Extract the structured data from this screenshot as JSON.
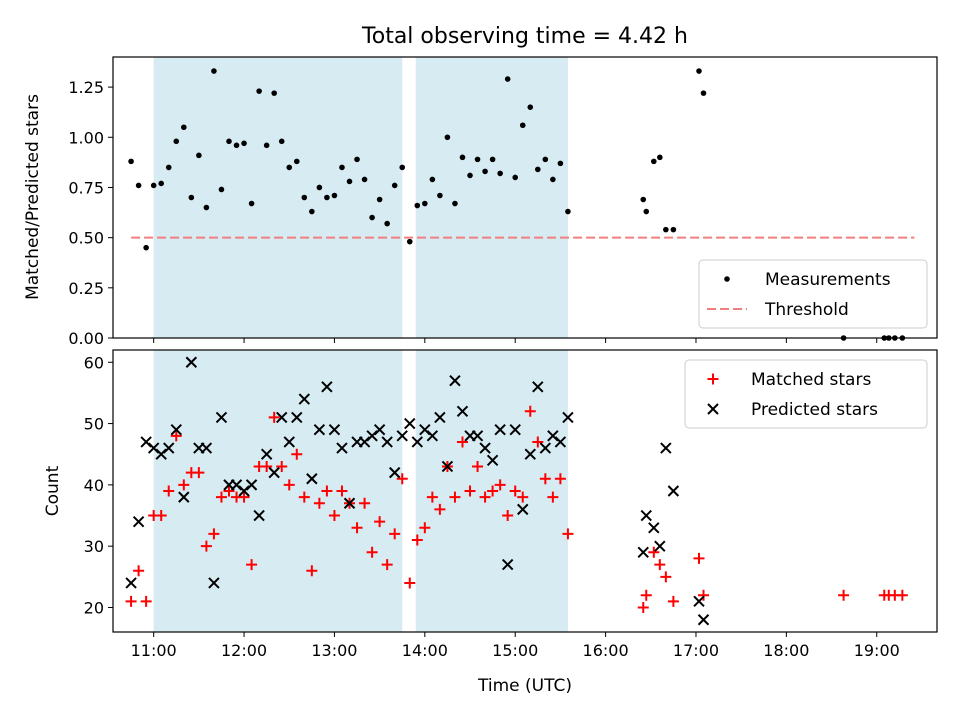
{
  "title": "Total observing time = 4.42 h",
  "chart_data": [
    {
      "type": "scatter",
      "panel": "top",
      "ylabel": "Matched/Predicted stars",
      "xlabel": "",
      "xlim": [
        "10:33",
        "19:40"
      ],
      "ylim": [
        0,
        1.4
      ],
      "yticks": [
        0.0,
        0.25,
        0.5,
        0.75,
        1.0,
        1.25
      ],
      "ytick_labels": [
        "0.00",
        "0.25",
        "0.50",
        "0.75",
        "1.00",
        "1.25"
      ],
      "xticks": [
        "11:00",
        "12:00",
        "13:00",
        "14:00",
        "15:00",
        "16:00",
        "17:00",
        "18:00",
        "19:00"
      ],
      "xtick_labels": [
        "",
        "",
        "",
        "",
        "",
        "",
        "",
        "",
        ""
      ],
      "shaded_intervals": [
        [
          "11:00",
          "13:45"
        ],
        [
          "13:54",
          "15:35"
        ]
      ],
      "series": [
        {
          "name": "Measurements",
          "marker": "point",
          "color": "#000000",
          "x": [
            "10:45",
            "10:50",
            "10:55",
            "11:00",
            "11:05",
            "11:10",
            "11:15",
            "11:20",
            "11:25",
            "11:30",
            "11:35",
            "11:40",
            "11:45",
            "11:50",
            "11:55",
            "12:00",
            "12:05",
            "12:10",
            "12:15",
            "12:20",
            "12:25",
            "12:30",
            "12:35",
            "12:40",
            "12:45",
            "12:50",
            "12:55",
            "13:00",
            "13:05",
            "13:10",
            "13:15",
            "13:20",
            "13:25",
            "13:30",
            "13:35",
            "13:40",
            "13:45",
            "13:50",
            "13:55",
            "14:00",
            "14:05",
            "14:10",
            "14:15",
            "14:20",
            "14:25",
            "14:30",
            "14:35",
            "14:40",
            "14:45",
            "14:50",
            "14:55",
            "15:00",
            "15:05",
            "15:10",
            "15:15",
            "15:20",
            "15:25",
            "15:30",
            "15:35",
            "16:25",
            "16:27",
            "16:32",
            "16:36",
            "16:40",
            "16:45",
            "17:02",
            "17:05",
            "18:38",
            "19:05",
            "19:08",
            "19:12",
            "19:17"
          ],
          "y": [
            0.88,
            0.76,
            0.45,
            0.76,
            0.77,
            0.85,
            0.98,
            1.05,
            0.7,
            0.91,
            0.65,
            1.33,
            0.74,
            0.98,
            0.96,
            0.97,
            0.67,
            1.23,
            0.96,
            1.22,
            0.98,
            0.85,
            0.88,
            0.7,
            0.63,
            0.75,
            0.7,
            0.71,
            0.85,
            0.78,
            0.89,
            0.79,
            0.6,
            0.69,
            0.57,
            0.76,
            0.85,
            0.48,
            0.66,
            0.67,
            0.79,
            0.71,
            1.0,
            0.67,
            0.9,
            0.81,
            0.89,
            0.83,
            0.89,
            0.82,
            1.29,
            0.8,
            1.06,
            1.15,
            0.84,
            0.89,
            0.79,
            0.87,
            0.63,
            0.69,
            0.63,
            0.88,
            0.9,
            0.54,
            0.54,
            1.33,
            1.22,
            0.0,
            0.0,
            0.0,
            0.0,
            0.0
          ]
        },
        {
          "name": "Threshold",
          "style": "dashed",
          "color": "#f08080",
          "x": [
            "10:45",
            "19:25"
          ],
          "y": [
            0.5,
            0.5
          ]
        }
      ],
      "legend": {
        "position": "bottom-right",
        "entries": [
          "Measurements",
          "Threshold"
        ]
      }
    },
    {
      "type": "scatter",
      "panel": "bottom",
      "ylabel": "Count",
      "xlabel": "Time (UTC)",
      "xlim": [
        "10:33",
        "19:40"
      ],
      "ylim": [
        16,
        62
      ],
      "yticks": [
        20,
        30,
        40,
        50,
        60
      ],
      "ytick_labels": [
        "20",
        "30",
        "40",
        "50",
        "60"
      ],
      "xticks": [
        "11:00",
        "12:00",
        "13:00",
        "14:00",
        "15:00",
        "16:00",
        "17:00",
        "18:00",
        "19:00"
      ],
      "xtick_labels": [
        "11:00",
        "12:00",
        "13:00",
        "14:00",
        "15:00",
        "16:00",
        "17:00",
        "18:00",
        "19:00"
      ],
      "shaded_intervals": [
        [
          "11:00",
          "13:45"
        ],
        [
          "13:54",
          "15:35"
        ]
      ],
      "series": [
        {
          "name": "Matched stars",
          "marker": "plus",
          "color": "#ff0000",
          "x": [
            "10:45",
            "10:50",
            "10:55",
            "11:00",
            "11:05",
            "11:10",
            "11:15",
            "11:20",
            "11:25",
            "11:30",
            "11:35",
            "11:40",
            "11:45",
            "11:50",
            "11:55",
            "12:00",
            "12:05",
            "12:10",
            "12:15",
            "12:20",
            "12:25",
            "12:30",
            "12:35",
            "12:40",
            "12:45",
            "12:50",
            "12:55",
            "13:00",
            "13:05",
            "13:10",
            "13:15",
            "13:20",
            "13:25",
            "13:30",
            "13:35",
            "13:40",
            "13:45",
            "13:50",
            "13:55",
            "14:00",
            "14:05",
            "14:10",
            "14:15",
            "14:20",
            "14:25",
            "14:30",
            "14:35",
            "14:40",
            "14:45",
            "14:50",
            "14:55",
            "15:00",
            "15:05",
            "15:10",
            "15:15",
            "15:20",
            "15:25",
            "15:30",
            "15:35",
            "16:25",
            "16:27",
            "16:32",
            "16:36",
            "16:40",
            "16:45",
            "17:02",
            "17:05",
            "18:38",
            "19:05",
            "19:08",
            "19:12",
            "19:17"
          ],
          "y": [
            21,
            26,
            21,
            35,
            35,
            39,
            48,
            40,
            42,
            42,
            30,
            32,
            38,
            39,
            38,
            38,
            27,
            43,
            43,
            51,
            43,
            40,
            45,
            38,
            26,
            37,
            39,
            35,
            39,
            37,
            33,
            37,
            29,
            34,
            27,
            32,
            41,
            24,
            31,
            33,
            38,
            36,
            43,
            38,
            47,
            39,
            43,
            38,
            39,
            40,
            35,
            39,
            38,
            52,
            47,
            41,
            38,
            41,
            32,
            20,
            22,
            29,
            27,
            25,
            21,
            28,
            22,
            22,
            22,
            22,
            22,
            22
          ]
        },
        {
          "name": "Predicted stars",
          "marker": "x",
          "color": "#000000",
          "x": [
            "10:45",
            "10:50",
            "10:55",
            "11:00",
            "11:05",
            "11:10",
            "11:15",
            "11:20",
            "11:25",
            "11:30",
            "11:35",
            "11:40",
            "11:45",
            "11:50",
            "11:55",
            "12:00",
            "12:05",
            "12:10",
            "12:15",
            "12:20",
            "12:25",
            "12:30",
            "12:35",
            "12:40",
            "12:45",
            "12:50",
            "12:55",
            "13:00",
            "13:05",
            "13:10",
            "13:15",
            "13:20",
            "13:25",
            "13:30",
            "13:35",
            "13:40",
            "13:45",
            "13:50",
            "13:55",
            "14:00",
            "14:05",
            "14:10",
            "14:15",
            "14:20",
            "14:25",
            "14:30",
            "14:35",
            "14:40",
            "14:45",
            "14:50",
            "14:55",
            "15:00",
            "15:05",
            "15:10",
            "15:15",
            "15:20",
            "15:25",
            "15:30",
            "15:35",
            "16:25",
            "16:27",
            "16:32",
            "16:36",
            "16:40",
            "16:45",
            "17:02",
            "17:05"
          ],
          "y": [
            24,
            34,
            47,
            46,
            45,
            46,
            49,
            38,
            60,
            46,
            46,
            24,
            51,
            40,
            40,
            39,
            40,
            35,
            45,
            42,
            51,
            47,
            51,
            54,
            41,
            49,
            56,
            49,
            46,
            37,
            47,
            47,
            48,
            49,
            47,
            42,
            48,
            50,
            47,
            49,
            48,
            51,
            43,
            57,
            52,
            48,
            48,
            46,
            44,
            49,
            27,
            49,
            36,
            45,
            56,
            46,
            48,
            47,
            51,
            29,
            35,
            33,
            30,
            46,
            39,
            21,
            18
          ]
        }
      ],
      "legend": {
        "position": "top-right",
        "entries": [
          "Matched stars",
          "Predicted stars"
        ]
      }
    }
  ]
}
